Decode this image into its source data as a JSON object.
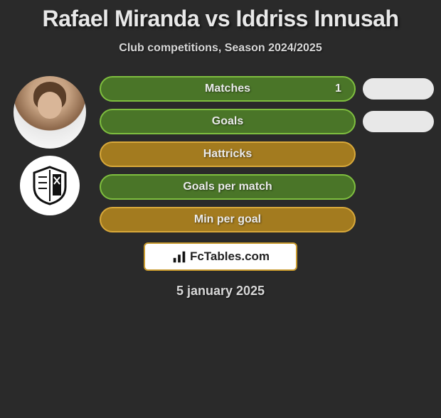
{
  "title": "Rafael Miranda vs Iddriss Innusah",
  "subtitle": "Club competitions, Season 2024/2025",
  "date": "5 january 2025",
  "brand": {
    "name": "FcTables.com"
  },
  "colors": {
    "pill_green_border": "#7fbf3f",
    "pill_green_fill": "#4a7528",
    "pill_yellow_border": "#d9a93a",
    "pill_yellow_fill": "#a37b1f",
    "side_pill_bg": "#e8e8e8",
    "background": "#2a2a2a",
    "text": "#e8e8e8"
  },
  "stats": [
    {
      "label": "Matches",
      "value_right": "1",
      "style": "green",
      "has_side_pill": true
    },
    {
      "label": "Goals",
      "value_right": "",
      "style": "green",
      "has_side_pill": true
    },
    {
      "label": "Hattricks",
      "value_right": "",
      "style": "yellow",
      "has_side_pill": false
    },
    {
      "label": "Goals per match",
      "value_right": "",
      "style": "green",
      "has_side_pill": false
    },
    {
      "label": "Min per goal",
      "value_right": "",
      "style": "yellow",
      "has_side_pill": false
    }
  ],
  "style_map": {
    "green": {
      "border": "#7fbf3f",
      "fill": "#4a7528"
    },
    "yellow": {
      "border": "#d9a93a",
      "fill": "#a37b1f"
    }
  }
}
